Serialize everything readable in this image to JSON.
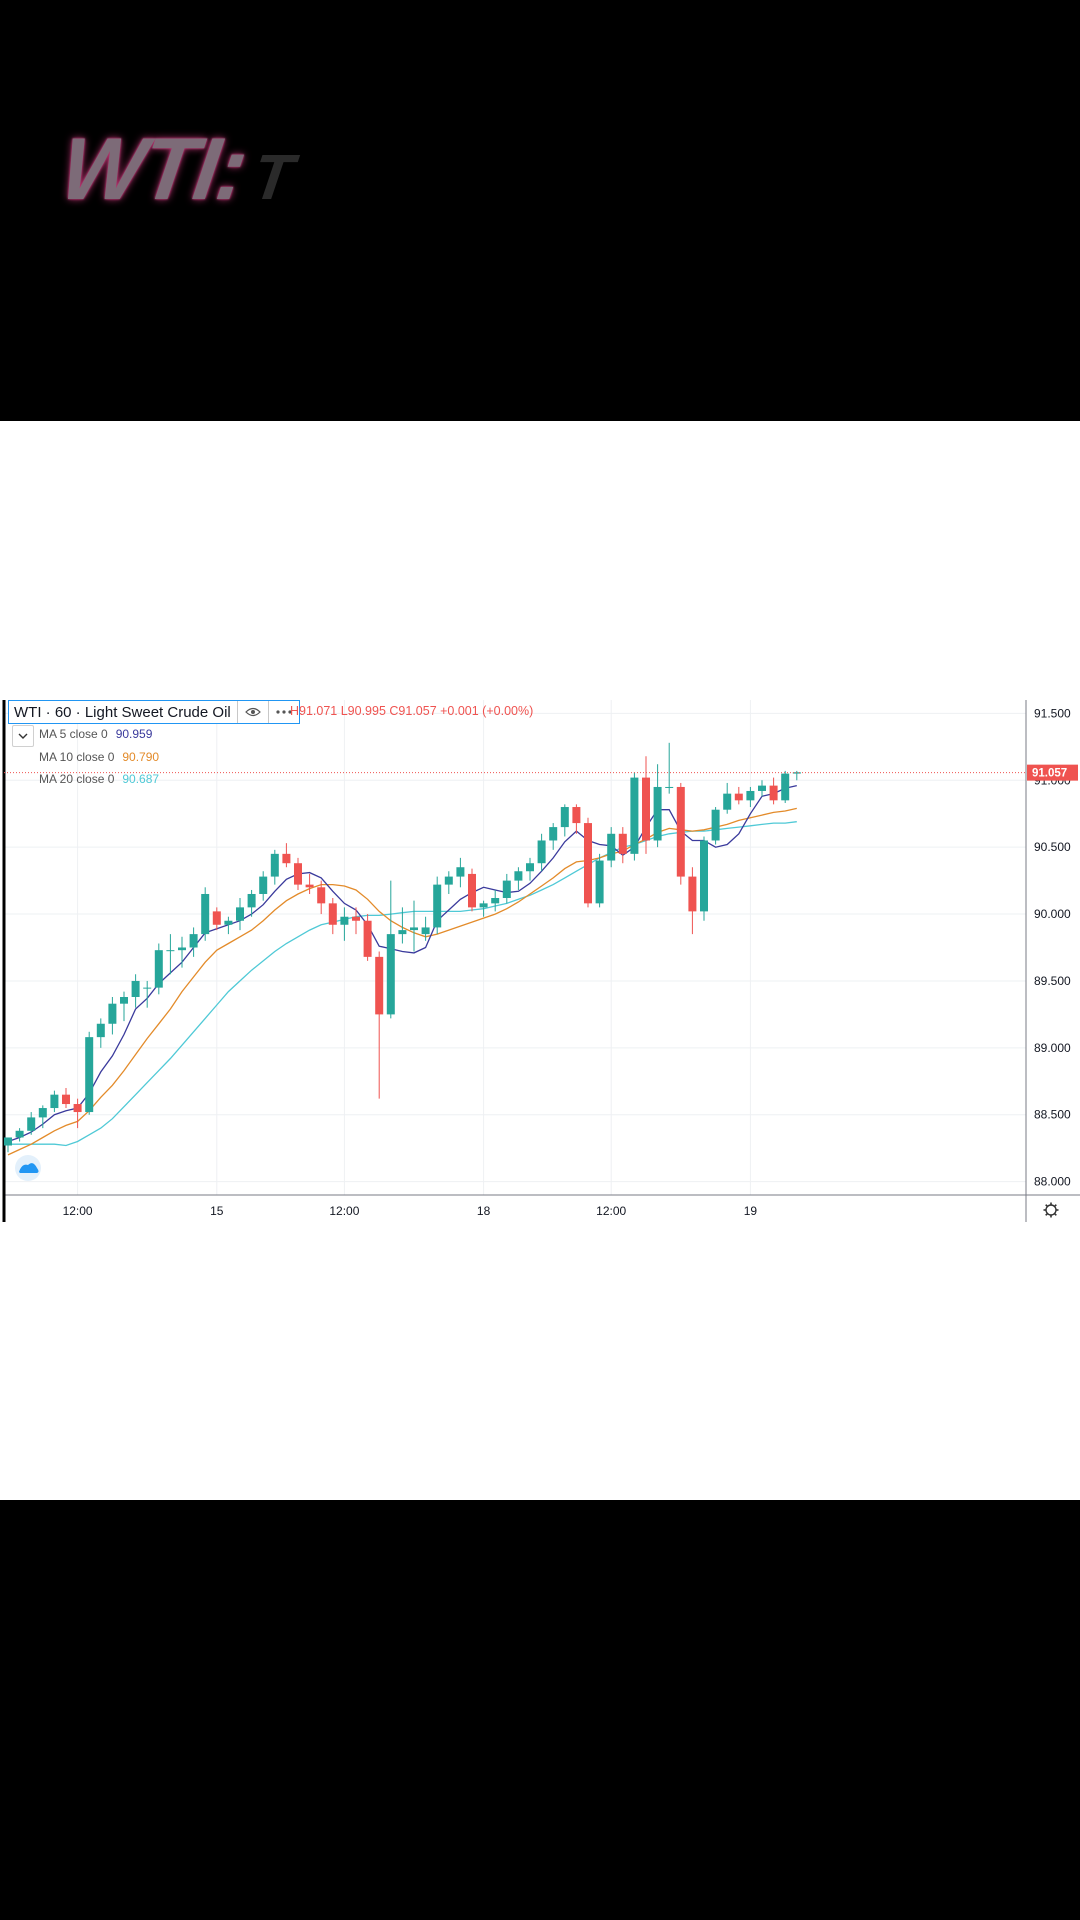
{
  "overlay": {
    "title_main": "WTI:",
    "title_fade": "T"
  },
  "header": {
    "symbol_label": "WTI · 60 · Light Sweet Crude Oil",
    "eye_icon": "eye-icon",
    "more_icon": "more-dots-icon",
    "ohlc_text": "H91.071  L90.995  C91.057  +0.001 (+0.00%)"
  },
  "indicators": [
    {
      "label": "MA 5 close 0",
      "value": "90.959",
      "color": "#3a3a9c"
    },
    {
      "label": "MA 10 close 0",
      "value": "90.790",
      "color": "#e38b2a"
    },
    {
      "label": "MA 20 close 0",
      "value": "90.687",
      "color": "#4fc9d6"
    }
  ],
  "colors": {
    "up": "#26a69a",
    "down": "#ef5350",
    "grid": "#eef0f3",
    "price_line": "#ef5350"
  },
  "chart_data": {
    "type": "candlestick",
    "ylim": [
      87.9,
      91.6
    ],
    "y_ticks": [
      "91.500",
      "91.000",
      "90.500",
      "90.000",
      "89.500",
      "89.000",
      "88.500",
      "88.000"
    ],
    "y_tick_values": [
      91.5,
      91.0,
      90.5,
      90.0,
      89.5,
      89.0,
      88.5,
      88.0
    ],
    "x_tick_labels": [
      "12:00",
      "15",
      "12:00",
      "18",
      "12:00",
      "19"
    ],
    "x_tick_index": [
      6,
      18,
      29,
      41,
      52,
      64
    ],
    "last_price": "91.057",
    "last_price_value": 91.057,
    "candles": [
      [
        88.27,
        88.33,
        88.22,
        88.33
      ],
      [
        88.33,
        88.4,
        88.3,
        88.38
      ],
      [
        88.38,
        88.52,
        88.35,
        88.48
      ],
      [
        88.48,
        88.57,
        88.4,
        88.55
      ],
      [
        88.55,
        88.68,
        88.52,
        88.65
      ],
      [
        88.65,
        88.7,
        88.55,
        88.58
      ],
      [
        88.58,
        88.62,
        88.4,
        88.52
      ],
      [
        88.52,
        89.12,
        88.5,
        89.08
      ],
      [
        89.08,
        89.22,
        89.0,
        89.18
      ],
      [
        89.18,
        89.38,
        89.1,
        89.33
      ],
      [
        89.33,
        89.42,
        89.2,
        89.38
      ],
      [
        89.38,
        89.55,
        89.3,
        89.5
      ],
      [
        89.45,
        89.5,
        89.3,
        89.45
      ],
      [
        89.45,
        89.78,
        89.4,
        89.73
      ],
      [
        89.73,
        89.85,
        89.55,
        89.73
      ],
      [
        89.73,
        89.83,
        89.6,
        89.75
      ],
      [
        89.75,
        89.9,
        89.68,
        89.85
      ],
      [
        89.85,
        90.2,
        89.8,
        90.15
      ],
      [
        90.02,
        90.05,
        89.88,
        89.92
      ],
      [
        89.92,
        89.98,
        89.85,
        89.95
      ],
      [
        89.95,
        90.12,
        89.88,
        90.05
      ],
      [
        90.05,
        90.18,
        89.98,
        90.15
      ],
      [
        90.15,
        90.32,
        90.1,
        90.28
      ],
      [
        90.28,
        90.48,
        90.22,
        90.45
      ],
      [
        90.45,
        90.53,
        90.35,
        90.38
      ],
      [
        90.38,
        90.42,
        90.18,
        90.22
      ],
      [
        90.22,
        90.3,
        90.15,
        90.2
      ],
      [
        90.2,
        90.25,
        90.0,
        90.08
      ],
      [
        90.08,
        90.12,
        89.85,
        89.92
      ],
      [
        89.92,
        90.05,
        89.8,
        89.98
      ],
      [
        89.98,
        90.05,
        89.85,
        89.95
      ],
      [
        89.95,
        90.0,
        89.65,
        89.68
      ],
      [
        89.68,
        89.72,
        88.62,
        89.25
      ],
      [
        89.25,
        90.25,
        89.22,
        89.85
      ],
      [
        89.85,
        90.05,
        89.78,
        89.88
      ],
      [
        89.88,
        90.1,
        89.72,
        89.9
      ],
      [
        89.85,
        89.98,
        89.8,
        89.9
      ],
      [
        89.9,
        90.28,
        89.85,
        90.22
      ],
      [
        90.22,
        90.32,
        90.15,
        90.28
      ],
      [
        90.28,
        90.42,
        90.2,
        90.35
      ],
      [
        90.3,
        90.34,
        90.02,
        90.05
      ],
      [
        90.05,
        90.1,
        89.98,
        90.08
      ],
      [
        90.08,
        90.18,
        90.02,
        90.12
      ],
      [
        90.12,
        90.3,
        90.08,
        90.25
      ],
      [
        90.25,
        90.35,
        90.18,
        90.32
      ],
      [
        90.32,
        90.42,
        90.25,
        90.38
      ],
      [
        90.38,
        90.6,
        90.32,
        90.55
      ],
      [
        90.55,
        90.68,
        90.48,
        90.65
      ],
      [
        90.65,
        90.82,
        90.58,
        90.8
      ],
      [
        90.8,
        90.82,
        90.6,
        90.68
      ],
      [
        90.68,
        90.72,
        90.05,
        90.08
      ],
      [
        90.08,
        90.45,
        90.05,
        90.4
      ],
      [
        90.4,
        90.65,
        90.35,
        90.6
      ],
      [
        90.6,
        90.65,
        90.38,
        90.45
      ],
      [
        90.45,
        91.06,
        90.4,
        91.02
      ],
      [
        91.02,
        91.18,
        90.45,
        90.55
      ],
      [
        90.55,
        91.12,
        90.5,
        90.95
      ],
      [
        90.95,
        91.28,
        90.9,
        90.95
      ],
      [
        90.95,
        90.98,
        90.22,
        90.28
      ],
      [
        90.28,
        90.35,
        89.85,
        90.02
      ],
      [
        90.02,
        90.58,
        89.95,
        90.55
      ],
      [
        90.55,
        90.8,
        90.52,
        90.78
      ],
      [
        90.78,
        90.98,
        90.75,
        90.9
      ],
      [
        90.9,
        90.95,
        90.82,
        90.85
      ],
      [
        90.85,
        90.95,
        90.8,
        90.92
      ],
      [
        90.92,
        91.0,
        90.88,
        90.96
      ],
      [
        90.96,
        91.02,
        90.82,
        90.85
      ],
      [
        90.85,
        91.07,
        90.83,
        91.05
      ],
      [
        91.05,
        91.07,
        91.0,
        91.06
      ]
    ],
    "ma5": [
      88.3,
      88.33,
      88.37,
      88.43,
      88.5,
      88.53,
      88.55,
      88.66,
      88.82,
      88.94,
      89.1,
      89.29,
      89.37,
      89.48,
      89.56,
      89.64,
      89.75,
      89.86,
      89.89,
      89.92,
      89.95,
      90.0,
      90.07,
      90.17,
      90.26,
      90.3,
      90.31,
      90.27,
      90.17,
      90.08,
      90.03,
      89.92,
      89.76,
      89.74,
      89.72,
      89.71,
      89.75,
      89.95,
      90.03,
      90.11,
      90.16,
      90.2,
      90.18,
      90.16,
      90.17,
      90.23,
      90.32,
      90.42,
      90.54,
      90.62,
      90.55,
      90.52,
      90.51,
      90.44,
      90.5,
      90.65,
      90.78,
      90.78,
      90.62,
      90.55,
      90.55,
      90.5,
      90.52,
      90.6,
      90.75,
      90.88,
      90.9,
      90.94,
      90.96
    ],
    "ma10": [
      88.2,
      88.24,
      88.28,
      88.33,
      88.38,
      88.42,
      88.45,
      88.53,
      88.63,
      88.72,
      88.83,
      88.95,
      89.07,
      89.18,
      89.29,
      89.42,
      89.53,
      89.64,
      89.73,
      89.78,
      89.83,
      89.88,
      89.95,
      90.03,
      90.1,
      90.15,
      90.19,
      90.22,
      90.22,
      90.21,
      90.18,
      90.11,
      90.02,
      89.95,
      89.9,
      89.86,
      89.83,
      89.85,
      89.88,
      89.91,
      89.94,
      89.97,
      90.0,
      90.04,
      90.09,
      90.15,
      90.21,
      90.27,
      90.34,
      90.39,
      90.4,
      90.42,
      90.45,
      90.47,
      90.52,
      90.56,
      90.61,
      90.64,
      90.63,
      90.62,
      90.63,
      90.65,
      90.67,
      90.7,
      90.72,
      90.74,
      90.76,
      90.77,
      90.79
    ],
    "ma20": [
      88.28,
      88.28,
      88.28,
      88.28,
      88.28,
      88.27,
      88.3,
      88.35,
      88.4,
      88.47,
      88.56,
      88.65,
      88.74,
      88.83,
      88.92,
      89.02,
      89.12,
      89.22,
      89.32,
      89.42,
      89.5,
      89.58,
      89.65,
      89.72,
      89.78,
      89.83,
      89.88,
      89.92,
      89.94,
      89.96,
      89.98,
      89.99,
      89.99,
      90.0,
      90.01,
      90.02,
      90.02,
      90.02,
      90.02,
      90.02,
      90.03,
      90.04,
      90.06,
      90.08,
      90.11,
      90.14,
      90.18,
      90.22,
      90.27,
      90.32,
      90.37,
      90.42,
      90.46,
      90.5,
      90.52,
      90.55,
      90.58,
      90.6,
      90.61,
      90.62,
      90.62,
      90.63,
      90.64,
      90.65,
      90.66,
      90.67,
      90.68,
      90.68,
      90.69
    ]
  }
}
